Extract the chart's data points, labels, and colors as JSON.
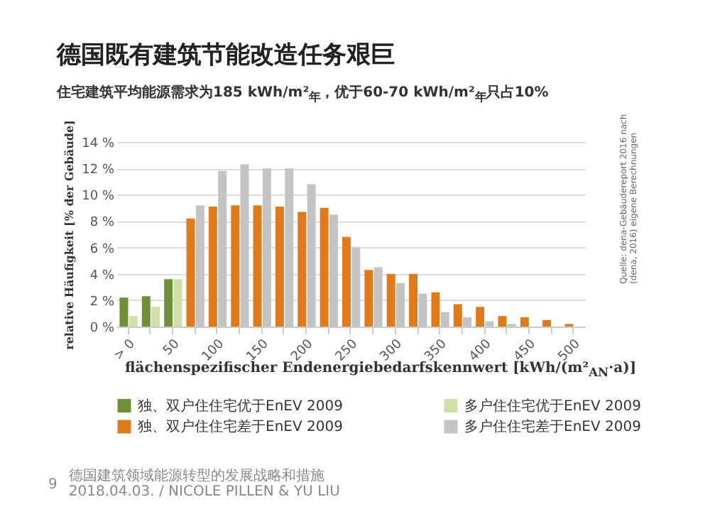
{
  "chart_data": {
    "type": "bar",
    "title": "德国既有建筑节能改造任务艰巨",
    "subtitle": "住宅建筑平均能源需求为185 kWh/m²$_{年}$，优于60-70 kWh/m²$_{年}$只占10%",
    "xlabel": "flächenspezifischer Endenergiebedarfskennwert [kWh/(m²$_{AN}$·a)]",
    "ylabel": "relative Häufigkeit [% der Gebäude]",
    "categories": [
      "> 0",
      null,
      "50",
      null,
      "100",
      null,
      "150",
      null,
      "200",
      null,
      "250",
      null,
      "300",
      null,
      "350",
      null,
      "400",
      null,
      "450",
      null,
      "500"
    ],
    "series": [
      {
        "name": "独、双户住住宅优于EnEV 2009",
        "color": "#6f8f3a",
        "values": [
          2.2,
          2.3,
          3.6,
          null,
          null,
          null,
          null,
          null,
          null,
          null,
          null,
          null,
          null,
          null,
          null,
          null,
          null,
          null,
          null,
          null,
          null
        ]
      },
      {
        "name": "多户住住宅优于EnEV 2009",
        "color": "#cfe0a8",
        "values": [
          0.8,
          1.5,
          3.6,
          null,
          null,
          null,
          null,
          null,
          null,
          null,
          null,
          null,
          null,
          null,
          null,
          null,
          null,
          null,
          null,
          null,
          null
        ]
      },
      {
        "name": "独、双户住住宅差于EnEV 2009",
        "color": "#e07b1c",
        "values": [
          null,
          null,
          null,
          8.2,
          9.1,
          9.2,
          9.2,
          9.1,
          8.7,
          9.0,
          6.8,
          4.3,
          4.0,
          4.0,
          2.6,
          1.7,
          1.5,
          0.8,
          0.7,
          0.5,
          0.2
        ]
      },
      {
        "name": "多户住住宅差于EnEV 2009",
        "color": "#c4c4c4",
        "values": [
          null,
          null,
          null,
          9.2,
          11.8,
          12.3,
          12.0,
          12.0,
          10.8,
          8.5,
          6.0,
          4.5,
          3.3,
          2.5,
          1.1,
          0.7,
          0.4,
          0.2,
          null,
          null,
          null
        ]
      }
    ],
    "ylim": [
      0,
      14
    ],
    "yticks": [
      {
        "value": 0,
        "label": "0 %"
      },
      {
        "value": 2,
        "label": "2 %"
      },
      {
        "value": 4,
        "label": "4 %"
      },
      {
        "value": 6,
        "label": "6 %"
      },
      {
        "value": 8,
        "label": "8 %"
      },
      {
        "value": 10,
        "label": "10 %"
      },
      {
        "value": 12,
        "label": "12 %"
      },
      {
        "value": 14,
        "label": "14 %"
      }
    ],
    "grid": "y",
    "legend": "bottom",
    "annotations": [
      "Quelle: dena-Gebäudereport 2016 nach (dena, 2016) eigene Berechnungen",
      "9",
      "德国建筑领域能源转型的发展战略和措施",
      "2018.04.03. / NICOLE PILLEN & YU LIU"
    ]
  }
}
